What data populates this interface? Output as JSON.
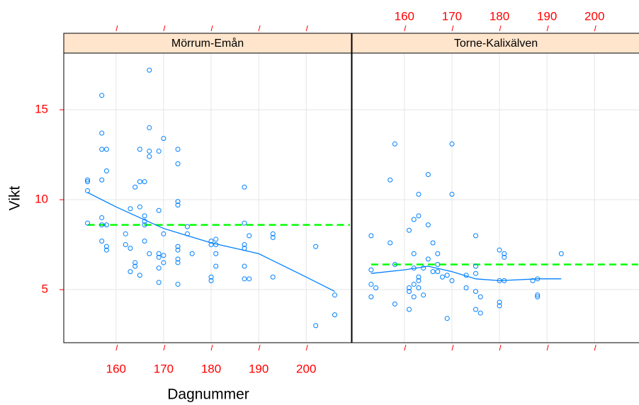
{
  "chart_data": [
    {
      "type": "scatter",
      "title": "Mörrum-Emån",
      "xlabel": "Dagnummer",
      "ylabel": "Vikt",
      "x": [
        154,
        154,
        154,
        154,
        157,
        157,
        157,
        158,
        158,
        157,
        157,
        157,
        158,
        157,
        158,
        158,
        162,
        162,
        163,
        163,
        164,
        164,
        164,
        163,
        165,
        165,
        165,
        165,
        166,
        166,
        166,
        166,
        166,
        167,
        167,
        167,
        167,
        167,
        169,
        169,
        169,
        169,
        169,
        169,
        170,
        170,
        170,
        170,
        173,
        173,
        173,
        173,
        173,
        173,
        173,
        173,
        173,
        175,
        175,
        176,
        180,
        180,
        180,
        180,
        181,
        181,
        181,
        181,
        187,
        187,
        187,
        187,
        187,
        187,
        188,
        188,
        193,
        193,
        193,
        202,
        202,
        206,
        206
      ],
      "values": [
        11.1,
        11.0,
        10.5,
        8.7,
        15.8,
        13.7,
        12.8,
        12.8,
        11.6,
        11.1,
        9.0,
        8.6,
        8.6,
        7.7,
        7.4,
        7.2,
        8.1,
        7.5,
        7.3,
        9.5,
        10.7,
        6.5,
        6.3,
        6.0,
        12.8,
        11.0,
        9.6,
        5.8,
        11.0,
        9.1,
        8.8,
        8.6,
        7.7,
        17.2,
        14.0,
        12.7,
        12.4,
        7.0,
        12.7,
        9.4,
        7.0,
        6.8,
        6.2,
        5.4,
        13.4,
        8.1,
        6.5,
        6.9,
        12.8,
        12.0,
        9.9,
        9.7,
        7.4,
        7.2,
        6.7,
        6.5,
        5.3,
        8.5,
        8.1,
        7.0,
        7.7,
        7.5,
        5.7,
        5.5,
        7.8,
        7.5,
        7.0,
        6.3,
        10.7,
        8.7,
        7.5,
        7.3,
        6.3,
        5.6,
        5.6,
        8.0,
        8.1,
        7.9,
        5.7,
        7.4,
        3.0,
        4.7,
        3.6
      ],
      "color": "#0080ff",
      "loess": {
        "x": [
          154,
          160,
          170,
          180,
          190,
          200,
          206
        ],
        "values": [
          10.4,
          9.6,
          8.4,
          7.6,
          7.0,
          5.7,
          4.9
        ],
        "color": "#0080ff"
      },
      "reference_line": {
        "value": 8.6,
        "color": "#00ff00",
        "style": "dashed"
      },
      "xlim": [
        149,
        209.5
      ],
      "ylim": [
        2.05,
        18.15
      ],
      "xticks": [
        160,
        170,
        180,
        190,
        200
      ],
      "yticks": [
        5,
        10,
        15
      ],
      "xtick_side": "bottom",
      "ytick_side": "left",
      "grid": true
    },
    {
      "type": "scatter",
      "title": "Torne-Kalixälven",
      "x": [
        153,
        153,
        153,
        153,
        154,
        157,
        157,
        158,
        158,
        158,
        161,
        161,
        161,
        161,
        162,
        162,
        162,
        162,
        162,
        163,
        163,
        163,
        163,
        163,
        164,
        164,
        165,
        165,
        165,
        166,
        166,
        167,
        167,
        167,
        168,
        169,
        169,
        170,
        170,
        170,
        173,
        173,
        175,
        175,
        175,
        175,
        175,
        176,
        176,
        180,
        180,
        180,
        180,
        181,
        181,
        181,
        187,
        188,
        188,
        188,
        193
      ],
      "values": [
        8.0,
        6.1,
        5.3,
        4.6,
        5.1,
        11.1,
        7.6,
        13.1,
        6.4,
        4.2,
        8.3,
        5.1,
        4.9,
        3.9,
        8.9,
        7.0,
        6.2,
        5.3,
        4.6,
        10.3,
        9.1,
        5.7,
        5.5,
        5.1,
        6.2,
        4.7,
        11.4,
        8.6,
        6.7,
        7.6,
        6.0,
        7.0,
        6.0,
        6.4,
        5.7,
        5.8,
        3.4,
        13.1,
        10.3,
        5.5,
        5.8,
        5.1,
        8.0,
        6.3,
        5.9,
        4.9,
        3.9,
        4.6,
        3.7,
        7.2,
        5.5,
        4.3,
        4.1,
        7.0,
        6.8,
        5.5,
        5.5,
        5.6,
        4.7,
        4.6,
        7.0
      ],
      "color": "#0080ff",
      "loess": {
        "x": [
          153,
          160,
          165,
          170,
          175,
          180,
          188,
          193
        ],
        "values": [
          5.9,
          6.1,
          6.3,
          6.0,
          5.6,
          5.5,
          5.6,
          5.6
        ],
        "color": "#0080ff"
      },
      "reference_line": {
        "value": 6.4,
        "color": "#00ff00",
        "style": "dashed"
      },
      "xlim": [
        149,
        209.5
      ],
      "ylim": [
        2.05,
        18.15
      ],
      "xticks": [
        160,
        170,
        180,
        190,
        200
      ],
      "yticks": [
        5,
        10,
        15
      ],
      "xtick_side": "top",
      "grid": true
    }
  ]
}
